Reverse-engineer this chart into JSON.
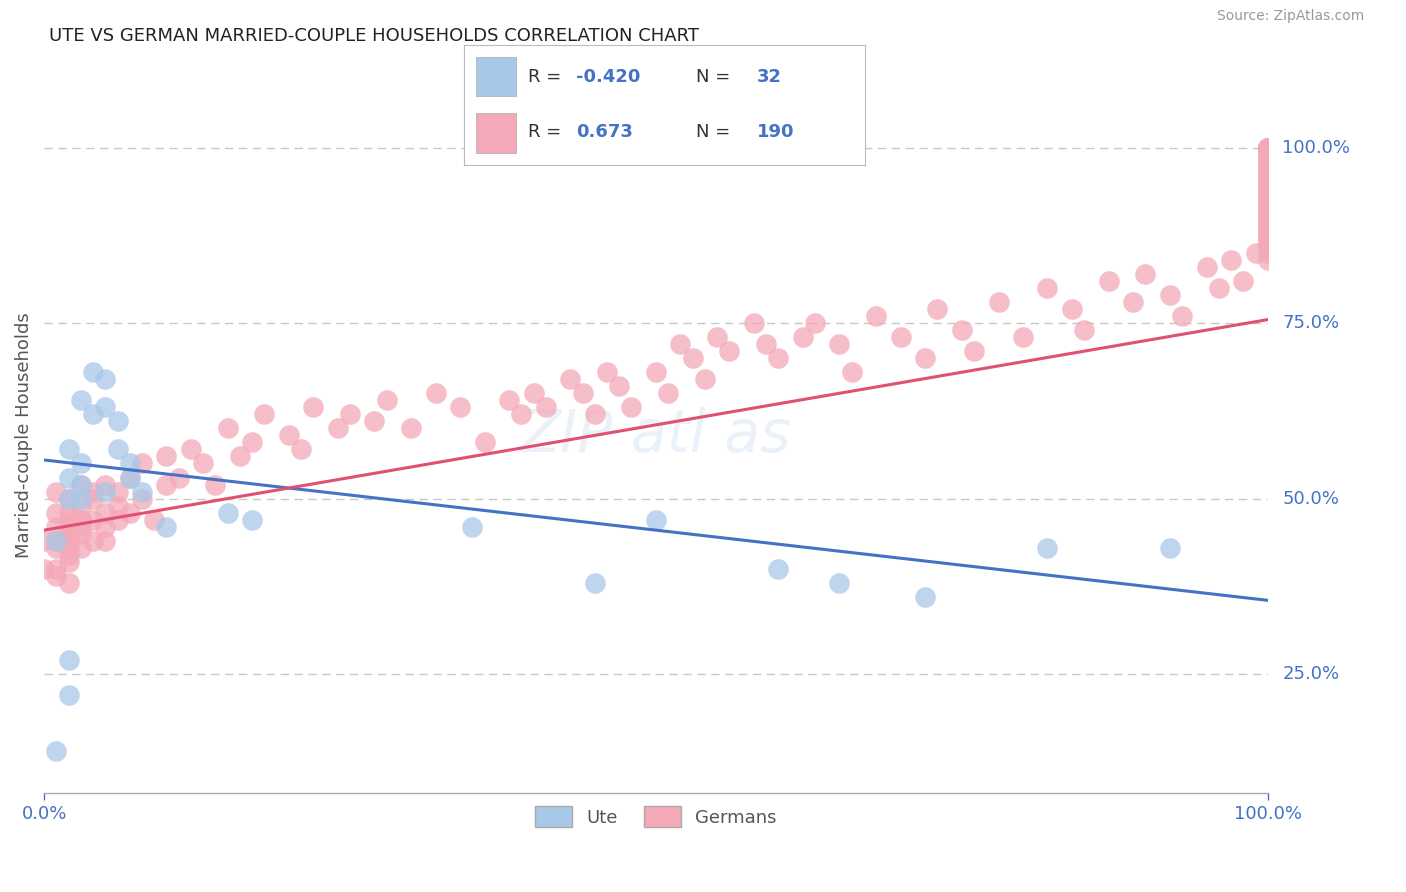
{
  "title": "UTE VS GERMAN MARRIED-COUPLE HOUSEHOLDS CORRELATION CHART",
  "source": "Source: ZipAtlas.com",
  "ylabel": "Married-couple Households",
  "ytick_labels": [
    "25.0%",
    "50.0%",
    "75.0%",
    "100.0%"
  ],
  "ytick_values": [
    0.25,
    0.5,
    0.75,
    1.0
  ],
  "xlim": [
    0.0,
    1.0
  ],
  "ylim": [
    0.08,
    1.1
  ],
  "legend_blue_r": "-0.420",
  "legend_blue_n": "32",
  "legend_pink_r": "0.673",
  "legend_pink_n": "190",
  "blue_color": "#a8c8e8",
  "pink_color": "#f4a8b8",
  "blue_line_color": "#4472c4",
  "pink_line_color": "#e05070",
  "grid_color": "#c8c8c8",
  "text_color": "#4472c4",
  "blue_line_x0": 0.0,
  "blue_line_y0": 0.555,
  "blue_line_x1": 1.0,
  "blue_line_y1": 0.355,
  "pink_line_x0": 0.0,
  "pink_line_y0": 0.455,
  "pink_line_x1": 1.0,
  "pink_line_y1": 0.755,
  "blue_x": [
    0.01,
    0.02,
    0.02,
    0.02,
    0.02,
    0.03,
    0.03,
    0.03,
    0.03,
    0.04,
    0.04,
    0.05,
    0.05,
    0.05,
    0.06,
    0.06,
    0.07,
    0.07,
    0.08,
    0.1,
    0.01,
    0.02,
    0.15,
    0.17,
    0.35,
    0.45,
    0.5,
    0.6,
    0.65,
    0.72,
    0.82,
    0.92
  ],
  "blue_y": [
    0.44,
    0.57,
    0.53,
    0.5,
    0.27,
    0.52,
    0.5,
    0.64,
    0.55,
    0.68,
    0.62,
    0.67,
    0.63,
    0.51,
    0.61,
    0.57,
    0.53,
    0.55,
    0.51,
    0.46,
    0.14,
    0.22,
    0.48,
    0.47,
    0.46,
    0.38,
    0.47,
    0.4,
    0.38,
    0.36,
    0.43,
    0.43
  ],
  "pink_x": [
    0.0,
    0.0,
    0.01,
    0.01,
    0.01,
    0.01,
    0.01,
    0.01,
    0.01,
    0.01,
    0.02,
    0.02,
    0.02,
    0.02,
    0.02,
    0.02,
    0.02,
    0.02,
    0.02,
    0.02,
    0.02,
    0.03,
    0.03,
    0.03,
    0.03,
    0.03,
    0.03,
    0.03,
    0.04,
    0.04,
    0.04,
    0.04,
    0.05,
    0.05,
    0.05,
    0.05,
    0.06,
    0.06,
    0.06,
    0.07,
    0.07,
    0.08,
    0.08,
    0.09,
    0.1,
    0.1,
    0.11,
    0.12,
    0.13,
    0.14,
    0.15,
    0.16,
    0.17,
    0.18,
    0.2,
    0.21,
    0.22,
    0.24,
    0.25,
    0.27,
    0.28,
    0.3,
    0.32,
    0.34,
    0.36,
    0.38,
    0.39,
    0.4,
    0.41,
    0.43,
    0.44,
    0.45,
    0.46,
    0.47,
    0.48,
    0.5,
    0.51,
    0.52,
    0.53,
    0.54,
    0.55,
    0.56,
    0.58,
    0.59,
    0.6,
    0.62,
    0.63,
    0.65,
    0.66,
    0.68,
    0.7,
    0.72,
    0.73,
    0.75,
    0.76,
    0.78,
    0.8,
    0.82,
    0.84,
    0.85,
    0.87,
    0.89,
    0.9,
    0.92,
    0.93,
    0.95,
    0.96,
    0.97,
    0.98,
    0.99,
    1.0,
    1.0,
    1.0,
    1.0,
    1.0,
    1.0,
    1.0,
    1.0,
    1.0,
    1.0,
    1.0,
    1.0,
    1.0,
    1.0,
    1.0,
    1.0,
    1.0,
    1.0,
    1.0,
    1.0,
    1.0,
    1.0,
    1.0,
    1.0,
    1.0,
    1.0,
    1.0,
    1.0,
    1.0,
    1.0,
    1.0,
    1.0,
    1.0,
    1.0,
    1.0,
    1.0,
    1.0,
    1.0,
    1.0,
    1.0,
    1.0,
    1.0,
    1.0,
    1.0,
    1.0,
    1.0,
    1.0,
    1.0,
    1.0,
    1.0,
    1.0,
    1.0,
    1.0,
    1.0,
    1.0,
    1.0,
    1.0,
    1.0,
    1.0,
    1.0,
    1.0,
    1.0,
    1.0,
    1.0,
    1.0,
    1.0,
    1.0,
    1.0,
    1.0,
    1.0,
    1.0,
    1.0
  ],
  "pink_y": [
    0.44,
    0.4,
    0.46,
    0.44,
    0.43,
    0.48,
    0.51,
    0.44,
    0.4,
    0.39,
    0.42,
    0.44,
    0.46,
    0.43,
    0.45,
    0.48,
    0.5,
    0.41,
    0.38,
    0.47,
    0.45,
    0.47,
    0.45,
    0.43,
    0.49,
    0.52,
    0.46,
    0.47,
    0.5,
    0.44,
    0.47,
    0.51,
    0.48,
    0.46,
    0.52,
    0.44,
    0.49,
    0.47,
    0.51,
    0.53,
    0.48,
    0.5,
    0.55,
    0.47,
    0.52,
    0.56,
    0.53,
    0.57,
    0.55,
    0.52,
    0.6,
    0.56,
    0.58,
    0.62,
    0.59,
    0.57,
    0.63,
    0.6,
    0.62,
    0.61,
    0.64,
    0.6,
    0.65,
    0.63,
    0.58,
    0.64,
    0.62,
    0.65,
    0.63,
    0.67,
    0.65,
    0.62,
    0.68,
    0.66,
    0.63,
    0.68,
    0.65,
    0.72,
    0.7,
    0.67,
    0.73,
    0.71,
    0.75,
    0.72,
    0.7,
    0.73,
    0.75,
    0.72,
    0.68,
    0.76,
    0.73,
    0.7,
    0.77,
    0.74,
    0.71,
    0.78,
    0.73,
    0.8,
    0.77,
    0.74,
    0.81,
    0.78,
    0.82,
    0.79,
    0.76,
    0.83,
    0.8,
    0.84,
    0.81,
    0.85,
    0.86,
    0.87,
    0.88,
    0.89,
    0.9,
    0.91,
    0.97,
    0.98,
    0.96,
    0.92,
    0.95,
    0.93,
    0.89,
    0.91,
    0.88,
    0.86,
    0.84,
    0.9,
    0.87,
    0.85,
    0.92,
    0.89,
    0.86,
    0.93,
    0.9,
    0.87,
    0.94,
    0.91,
    0.88,
    0.95,
    0.92,
    0.89,
    0.96,
    0.93,
    0.9,
    0.97,
    0.94,
    0.91,
    0.98,
    0.95,
    0.92,
    0.99,
    0.96,
    0.93,
    1.0,
    0.97,
    0.94,
    1.0,
    0.98,
    0.95,
    1.0,
    0.99,
    0.96,
    1.0,
    1.0,
    0.97,
    1.0,
    1.0,
    0.98,
    1.0,
    1.0,
    0.99,
    1.0,
    1.0,
    1.0,
    1.0,
    1.0,
    1.0,
    1.0,
    1.0,
    1.0,
    1.0
  ]
}
